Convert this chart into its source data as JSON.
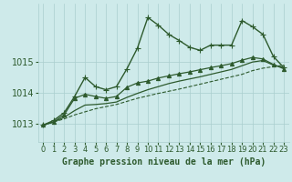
{
  "title": "Graphe pression niveau de la mer (hPa)",
  "background_color": "#ceeaea",
  "grid_color": "#aacece",
  "line_color": "#2d5a2d",
  "xlim": [
    -0.5,
    23.5
  ],
  "ylim": [
    1012.4,
    1016.9
  ],
  "yticks": [
    1013,
    1014,
    1015
  ],
  "xticks": [
    0,
    1,
    2,
    3,
    4,
    5,
    6,
    7,
    8,
    9,
    10,
    11,
    12,
    13,
    14,
    15,
    16,
    17,
    18,
    19,
    20,
    21,
    22,
    23
  ],
  "series": [
    {
      "x": [
        0,
        1,
        2,
        3,
        4,
        5,
        6,
        7,
        8,
        9,
        10,
        11,
        12,
        13,
        14,
        15,
        16,
        17,
        18,
        19,
        20,
        21,
        22,
        23
      ],
      "y": [
        1012.95,
        1013.05,
        1013.15,
        1013.28,
        1013.38,
        1013.48,
        1013.55,
        1013.62,
        1013.72,
        1013.82,
        1013.9,
        1013.98,
        1014.05,
        1014.12,
        1014.2,
        1014.28,
        1014.36,
        1014.44,
        1014.52,
        1014.6,
        1014.72,
        1014.8,
        1014.85,
        1014.9
      ],
      "style": "--",
      "marker": null,
      "linewidth": 0.8
    },
    {
      "x": [
        0,
        1,
        2,
        3,
        4,
        5,
        6,
        7,
        8,
        9,
        10,
        11,
        12,
        13,
        14,
        15,
        16,
        17,
        18,
        19,
        20,
        21,
        22,
        23
      ],
      "y": [
        1012.95,
        1013.05,
        1013.2,
        1013.42,
        1013.6,
        1013.62,
        1013.65,
        1013.7,
        1013.85,
        1013.98,
        1014.1,
        1014.2,
        1014.3,
        1014.38,
        1014.45,
        1014.52,
        1014.6,
        1014.68,
        1014.76,
        1014.88,
        1015.0,
        1015.05,
        1014.9,
        1014.82
      ],
      "style": "-",
      "marker": null,
      "linewidth": 0.9
    },
    {
      "x": [
        0,
        1,
        2,
        3,
        4,
        5,
        6,
        7,
        8,
        9,
        10,
        11,
        12,
        13,
        14,
        15,
        16,
        17,
        18,
        19,
        20,
        21,
        22,
        23
      ],
      "y": [
        1012.95,
        1013.1,
        1013.35,
        1013.88,
        1014.5,
        1014.2,
        1014.1,
        1014.2,
        1014.78,
        1015.45,
        1016.45,
        1016.2,
        1015.9,
        1015.7,
        1015.48,
        1015.38,
        1015.55,
        1015.55,
        1015.55,
        1016.35,
        1016.15,
        1015.9,
        1015.18,
        1014.82
      ],
      "style": "-",
      "marker": "+",
      "linewidth": 1.0
    },
    {
      "x": [
        0,
        1,
        2,
        3,
        4,
        5,
        6,
        7,
        8,
        9,
        10,
        11,
        12,
        13,
        14,
        15,
        16,
        17,
        18,
        19,
        20,
        21,
        22,
        23
      ],
      "y": [
        1012.95,
        1013.05,
        1013.28,
        1013.82,
        1013.95,
        1013.88,
        1013.82,
        1013.88,
        1014.18,
        1014.32,
        1014.38,
        1014.48,
        1014.55,
        1014.62,
        1014.68,
        1014.75,
        1014.82,
        1014.88,
        1014.95,
        1015.06,
        1015.15,
        1015.1,
        1014.92,
        1014.78
      ],
      "style": "-",
      "marker": "^",
      "linewidth": 0.9
    }
  ],
  "title_fontsize": 7,
  "tick_fontsize": 6
}
